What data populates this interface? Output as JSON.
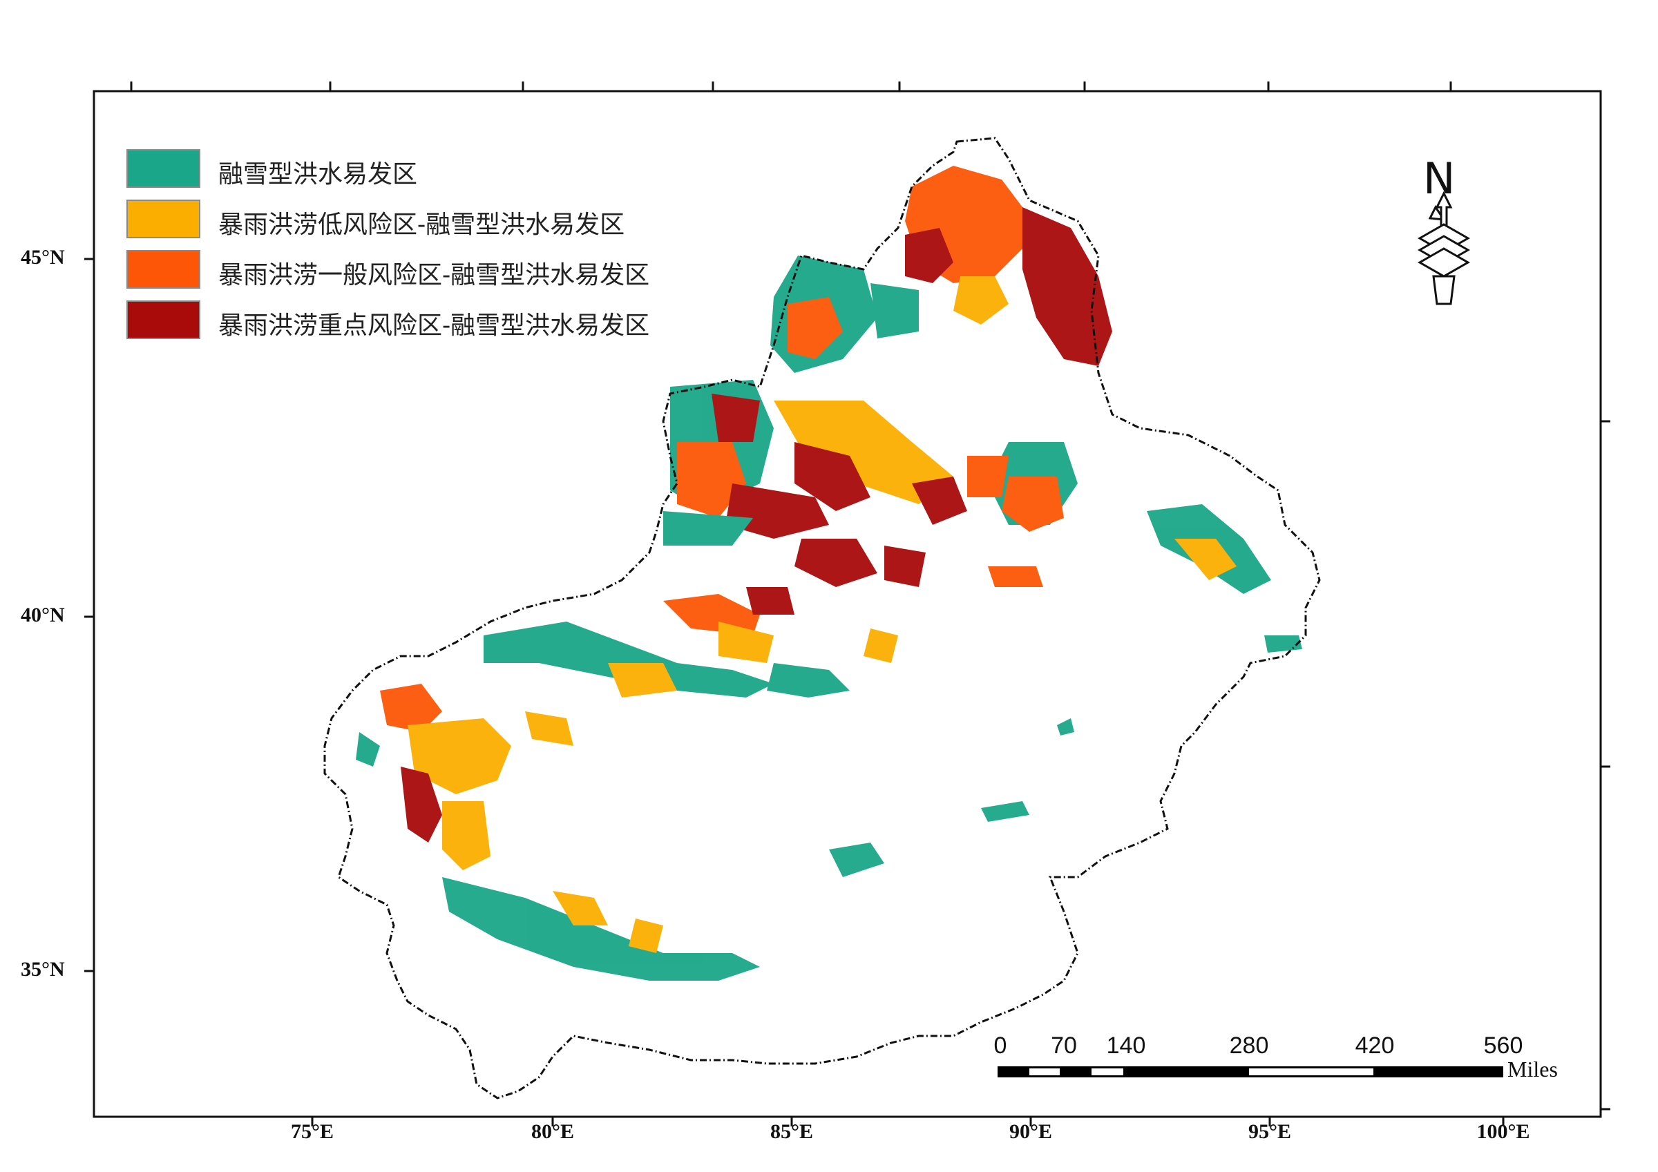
{
  "legend": [
    {
      "label": "融雪型洪水易发区",
      "color": "#1aa688"
    },
    {
      "label": "暴雨洪涝低风险区-融雪型洪水易发区",
      "color": "#fcae00"
    },
    {
      "label": "暴雨洪涝一般风险区-融雪型洪水易发区",
      "color": "#fc5606"
    },
    {
      "label": "暴雨洪涝重点风险区-融雪型洪水易发区",
      "color": "#a90a0a"
    }
  ],
  "latitude_labels": [
    "45°N",
    "40°N",
    "35°N"
  ],
  "longitude_labels": [
    "75°E",
    "80°E",
    "85°E",
    "90°E",
    "95°E",
    "100°E"
  ],
  "scale_bar": {
    "ticks": [
      "0",
      "70",
      "140",
      "280",
      "420",
      "560"
    ],
    "unit": "Miles"
  },
  "north_arrow": {
    "letter": "N",
    "icon": "north-arrow-icon"
  },
  "colors": {
    "frame": "#111111",
    "boundary": "#111111"
  }
}
